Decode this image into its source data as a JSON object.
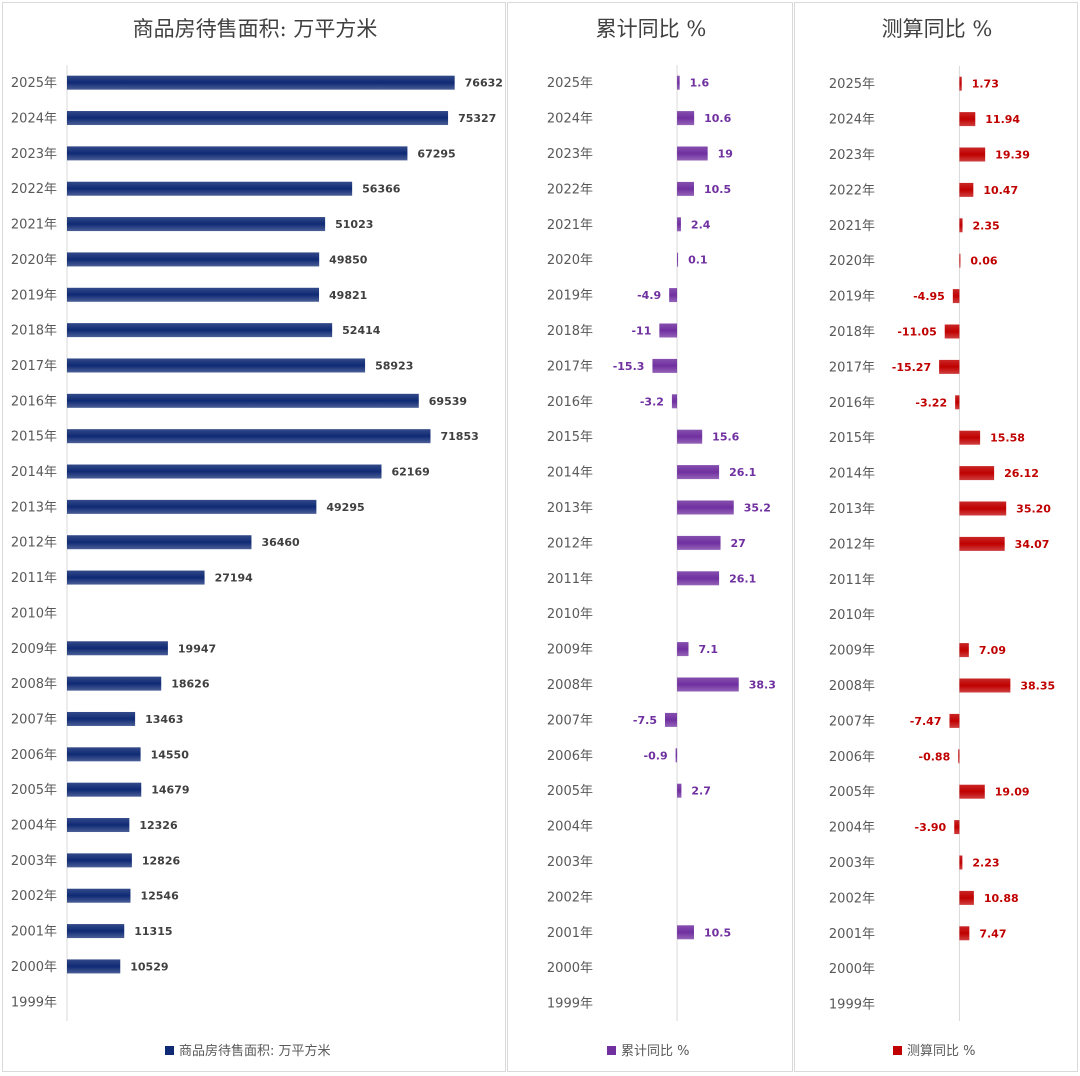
{
  "chart_data": [
    {
      "type": "bar",
      "orientation": "horizontal",
      "title": "商品房待售面积: 万平方米",
      "categories": [
        "2025年",
        "2024年",
        "2023年",
        "2022年",
        "2021年",
        "2020年",
        "2019年",
        "2018年",
        "2017年",
        "2016年",
        "2015年",
        "2014年",
        "2013年",
        "2012年",
        "2011年",
        "2010年",
        "2009年",
        "2008年",
        "2007年",
        "2006年",
        "2005年",
        "2004年",
        "2003年",
        "2002年",
        "2001年",
        "2000年",
        "1999年"
      ],
      "values": [
        76632,
        75327,
        67295,
        56366,
        51023,
        49850,
        49821,
        52414,
        58923,
        69539,
        71853,
        62169,
        49295,
        36460,
        27194,
        null,
        19947,
        18626,
        13463,
        14550,
        14679,
        12326,
        12826,
        12546,
        11315,
        10529,
        null
      ],
      "labels": [
        "76632",
        "75327",
        "67295",
        "56366",
        "51023",
        "49850",
        "49821",
        "52414",
        "58923",
        "69539",
        "71853",
        "62169",
        "49295",
        "36460",
        "27194",
        "",
        "19947",
        "18626",
        "13463",
        "14550",
        "14679",
        "12326",
        "12826",
        "12546",
        "11315",
        "10529",
        ""
      ],
      "legend": "商品房待售面积: 万平方米",
      "legend_position": "bottom",
      "xlim": [
        0,
        85000
      ],
      "grid": false,
      "color": "#0F2A74"
    },
    {
      "type": "bar",
      "orientation": "horizontal",
      "title": "累计同比 %",
      "categories": [
        "2025年",
        "2024年",
        "2023年",
        "2022年",
        "2021年",
        "2020年",
        "2019年",
        "2018年",
        "2017年",
        "2016年",
        "2015年",
        "2014年",
        "2013年",
        "2012年",
        "2011年",
        "2010年",
        "2009年",
        "2008年",
        "2007年",
        "2006年",
        "2005年",
        "2004年",
        "2003年",
        "2002年",
        "2001年",
        "2000年",
        "1999年"
      ],
      "values": [
        1.6,
        10.6,
        19,
        10.5,
        2.4,
        0.1,
        -4.9,
        -11,
        -15.3,
        -3.2,
        15.6,
        26.1,
        35.2,
        27,
        26.1,
        null,
        7.1,
        38.3,
        -7.5,
        -0.9,
        2.7,
        null,
        null,
        null,
        10.5,
        null,
        null
      ],
      "labels": [
        "1.6",
        "10.6",
        "19",
        "10.5",
        "2.4",
        "0.1",
        "-4.9",
        "-11",
        "-15.3",
        "-3.2",
        "15.6",
        "26.1",
        "35.2",
        "27",
        "26.1",
        "",
        "7.1",
        "38.3",
        "-7.5",
        "-0.9",
        "2.7",
        "",
        "",
        "",
        "10.5",
        "",
        ""
      ],
      "legend": "累计同比 %",
      "legend_position": "bottom",
      "xlim": [
        -46,
        72
      ],
      "grid": false,
      "color": "#7030A0"
    },
    {
      "type": "bar",
      "orientation": "horizontal",
      "title": "测算同比 %",
      "categories": [
        "2025年",
        "2024年",
        "2023年",
        "2022年",
        "2021年",
        "2020年",
        "2019年",
        "2018年",
        "2017年",
        "2016年",
        "2015年",
        "2014年",
        "2013年",
        "2012年",
        "2011年",
        "2010年",
        "2009年",
        "2008年",
        "2007年",
        "2006年",
        "2005年",
        "2004年",
        "2003年",
        "2002年",
        "2001年",
        "2000年",
        "1999年"
      ],
      "values": [
        1.73,
        11.94,
        19.39,
        10.47,
        2.35,
        0.06,
        -4.95,
        -11.05,
        -15.27,
        -3.22,
        15.58,
        26.12,
        35.2,
        34.07,
        null,
        null,
        7.09,
        38.35,
        -7.47,
        -0.88,
        19.09,
        -3.9,
        2.23,
        10.88,
        7.47,
        null,
        null
      ],
      "labels": [
        "1.73",
        "11.94",
        "19.39",
        "10.47",
        "2.35",
        "0.06",
        "-4.95",
        "-11.05",
        "-15.27",
        "-3.22",
        "15.58",
        "26.12",
        "35.20",
        "34.07",
        "",
        "",
        "7.09",
        "38.35",
        "-7.47",
        "-0.88",
        "19.09",
        "-3.90",
        "2.23",
        "10.88",
        "7.47",
        "",
        ""
      ],
      "legend": "测算同比 %",
      "legend_position": "bottom",
      "xlim": [
        -56,
        90
      ],
      "grid": false,
      "color": "#C00000"
    }
  ]
}
